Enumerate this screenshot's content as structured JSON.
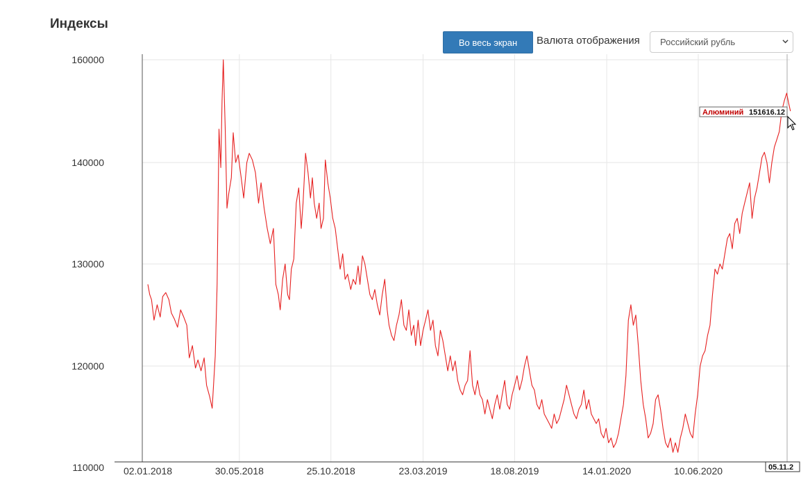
{
  "header": {
    "title": "Индексы",
    "fullscreen_label": "Во весь экран",
    "currency_label": "Валюта отображения",
    "currency_selected": "Российский рубль"
  },
  "colors": {
    "line": "#e62020",
    "button": "#337ab7",
    "grid": "#e6e6e6"
  },
  "chart_data": {
    "type": "line",
    "title": "",
    "xlabel": "",
    "ylabel": "",
    "grid": true,
    "ylim": [
      110000,
      160000
    ],
    "xlim": [
      "2018-01-02",
      "2020-12-09"
    ],
    "y_ticks": [
      110000,
      120000,
      130000,
      140000,
      160000
    ],
    "y_tick_labels": [
      "110000",
      "120000",
      "130000",
      "140000",
      "160000"
    ],
    "x_ticks": [
      "2018-01-02",
      "2018-05-30",
      "2018-10-25",
      "2019-03-23",
      "2019-08-18",
      "2020-01-14",
      "2020-06-10"
    ],
    "x_tick_labels": [
      "02.01.2018",
      "30.05.2018",
      "25.10.2018",
      "23.03.2019",
      "18.08.2019",
      "14.01.2020",
      "10.06.2020"
    ],
    "tooltip": {
      "name": "Алюминий",
      "value": "151616.12",
      "date": "05.11.2"
    },
    "series": [
      {
        "name": "Алюминий",
        "points": [
          [
            "2018-01-02",
            128000
          ],
          [
            "2018-01-05",
            127000
          ],
          [
            "2018-01-08",
            126500
          ],
          [
            "2018-01-12",
            124500
          ],
          [
            "2018-01-17",
            126000
          ],
          [
            "2018-01-22",
            124800
          ],
          [
            "2018-01-26",
            126800
          ],
          [
            "2018-01-31",
            127200
          ],
          [
            "2018-02-05",
            126500
          ],
          [
            "2018-02-09",
            125200
          ],
          [
            "2018-02-14",
            124600
          ],
          [
            "2018-02-19",
            123800
          ],
          [
            "2018-02-24",
            125500
          ],
          [
            "2018-03-01",
            124800
          ],
          [
            "2018-03-06",
            124000
          ],
          [
            "2018-03-10",
            120800
          ],
          [
            "2018-03-15",
            122000
          ],
          [
            "2018-03-20",
            119800
          ],
          [
            "2018-03-24",
            120600
          ],
          [
            "2018-03-29",
            119500
          ],
          [
            "2018-04-03",
            120800
          ],
          [
            "2018-04-07",
            118000
          ],
          [
            "2018-04-12",
            116800
          ],
          [
            "2018-04-16",
            115600
          ],
          [
            "2018-04-21",
            121000
          ],
          [
            "2018-04-24",
            128000
          ],
          [
            "2018-04-27",
            146500
          ],
          [
            "2018-04-30",
            139500
          ],
          [
            "2018-05-02",
            152000
          ],
          [
            "2018-05-04",
            160000
          ],
          [
            "2018-05-07",
            147000
          ],
          [
            "2018-05-10",
            135500
          ],
          [
            "2018-05-13",
            137000
          ],
          [
            "2018-05-17",
            138500
          ],
          [
            "2018-05-20",
            145800
          ],
          [
            "2018-05-24",
            140000
          ],
          [
            "2018-05-28",
            141500
          ],
          [
            "2018-06-02",
            138500
          ],
          [
            "2018-06-06",
            136500
          ],
          [
            "2018-06-11",
            140000
          ],
          [
            "2018-06-15",
            141800
          ],
          [
            "2018-06-20",
            140500
          ],
          [
            "2018-06-25",
            139000
          ],
          [
            "2018-06-30",
            136000
          ],
          [
            "2018-07-04",
            138000
          ],
          [
            "2018-07-09",
            135500
          ],
          [
            "2018-07-14",
            133500
          ],
          [
            "2018-07-19",
            132000
          ],
          [
            "2018-07-24",
            133500
          ],
          [
            "2018-07-28",
            128000
          ],
          [
            "2018-08-01",
            127000
          ],
          [
            "2018-08-04",
            125500
          ],
          [
            "2018-08-08",
            128500
          ],
          [
            "2018-08-12",
            130000
          ],
          [
            "2018-08-16",
            127000
          ],
          [
            "2018-08-19",
            126500
          ],
          [
            "2018-08-22",
            129500
          ],
          [
            "2018-08-26",
            130500
          ],
          [
            "2018-08-30",
            136000
          ],
          [
            "2018-09-03",
            137500
          ],
          [
            "2018-09-07",
            133500
          ],
          [
            "2018-09-10",
            136000
          ],
          [
            "2018-09-14",
            141800
          ],
          [
            "2018-09-18",
            139000
          ],
          [
            "2018-09-22",
            136500
          ],
          [
            "2018-09-25",
            138500
          ],
          [
            "2018-09-28",
            136000
          ],
          [
            "2018-10-02",
            134500
          ],
          [
            "2018-10-06",
            136000
          ],
          [
            "2018-10-09",
            133500
          ],
          [
            "2018-10-13",
            134500
          ],
          [
            "2018-10-16",
            140500
          ],
          [
            "2018-10-20",
            138000
          ],
          [
            "2018-10-24",
            136500
          ],
          [
            "2018-10-28",
            134500
          ],
          [
            "2018-11-01",
            133500
          ],
          [
            "2018-11-05",
            131500
          ],
          [
            "2018-11-09",
            129500
          ],
          [
            "2018-11-13",
            131000
          ],
          [
            "2018-11-17",
            128500
          ],
          [
            "2018-11-21",
            129000
          ],
          [
            "2018-11-26",
            127500
          ],
          [
            "2018-11-30",
            128500
          ],
          [
            "2018-12-04",
            128000
          ],
          [
            "2018-12-08",
            129800
          ],
          [
            "2018-12-11",
            128000
          ],
          [
            "2018-12-15",
            130800
          ],
          [
            "2018-12-19",
            130000
          ],
          [
            "2018-12-23",
            128500
          ],
          [
            "2018-12-27",
            127000
          ],
          [
            "2018-12-31",
            126500
          ],
          [
            "2019-01-04",
            127500
          ],
          [
            "2019-01-08",
            126000
          ],
          [
            "2019-01-12",
            125000
          ],
          [
            "2019-01-16",
            127000
          ],
          [
            "2019-01-20",
            128500
          ],
          [
            "2019-01-24",
            125500
          ],
          [
            "2019-01-27",
            124000
          ],
          [
            "2019-01-31",
            123000
          ],
          [
            "2019-02-04",
            122500
          ],
          [
            "2019-02-08",
            124000
          ],
          [
            "2019-02-12",
            125000
          ],
          [
            "2019-02-16",
            126500
          ],
          [
            "2019-02-20",
            124000
          ],
          [
            "2019-02-24",
            123500
          ],
          [
            "2019-02-28",
            125500
          ],
          [
            "2019-03-04",
            123000
          ],
          [
            "2019-03-08",
            124000
          ],
          [
            "2019-03-11",
            122000
          ],
          [
            "2019-03-15",
            124500
          ],
          [
            "2019-03-19",
            122000
          ],
          [
            "2019-03-23",
            123500
          ],
          [
            "2019-03-27",
            124500
          ],
          [
            "2019-03-31",
            125500
          ],
          [
            "2019-04-04",
            123500
          ],
          [
            "2019-04-08",
            124500
          ],
          [
            "2019-04-12",
            122000
          ],
          [
            "2019-04-16",
            121000
          ],
          [
            "2019-04-20",
            123500
          ],
          [
            "2019-04-24",
            122500
          ],
          [
            "2019-04-28",
            121000
          ],
          [
            "2019-05-02",
            119500
          ],
          [
            "2019-05-06",
            121000
          ],
          [
            "2019-05-10",
            119500
          ],
          [
            "2019-05-14",
            120500
          ],
          [
            "2019-05-18",
            118500
          ],
          [
            "2019-05-22",
            117500
          ],
          [
            "2019-05-26",
            117000
          ],
          [
            "2019-05-30",
            118000
          ],
          [
            "2019-06-03",
            118500
          ],
          [
            "2019-06-07",
            121500
          ],
          [
            "2019-06-11",
            118000
          ],
          [
            "2019-06-15",
            117000
          ],
          [
            "2019-06-19",
            118500
          ],
          [
            "2019-06-23",
            117000
          ],
          [
            "2019-06-27",
            116500
          ],
          [
            "2019-07-01",
            115000
          ],
          [
            "2019-07-05",
            116500
          ],
          [
            "2019-07-09",
            115500
          ],
          [
            "2019-07-13",
            114500
          ],
          [
            "2019-07-17",
            116000
          ],
          [
            "2019-07-21",
            117000
          ],
          [
            "2019-07-25",
            115500
          ],
          [
            "2019-07-29",
            117000
          ],
          [
            "2019-08-02",
            118500
          ],
          [
            "2019-08-06",
            116000
          ],
          [
            "2019-08-10",
            115500
          ],
          [
            "2019-08-14",
            117000
          ],
          [
            "2019-08-18",
            118000
          ],
          [
            "2019-08-22",
            119000
          ],
          [
            "2019-08-26",
            117500
          ],
          [
            "2019-08-30",
            118500
          ],
          [
            "2019-09-03",
            120000
          ],
          [
            "2019-09-07",
            121000
          ],
          [
            "2019-09-11",
            119500
          ],
          [
            "2019-09-15",
            118000
          ],
          [
            "2019-09-19",
            117500
          ],
          [
            "2019-09-23",
            116000
          ],
          [
            "2019-09-27",
            115500
          ],
          [
            "2019-10-01",
            116500
          ],
          [
            "2019-10-05",
            115000
          ],
          [
            "2019-10-09",
            114500
          ],
          [
            "2019-10-13",
            114000
          ],
          [
            "2019-10-17",
            113500
          ],
          [
            "2019-10-21",
            115000
          ],
          [
            "2019-10-25",
            114000
          ],
          [
            "2019-10-29",
            114500
          ],
          [
            "2019-11-02",
            115500
          ],
          [
            "2019-11-06",
            116500
          ],
          [
            "2019-11-10",
            118000
          ],
          [
            "2019-11-14",
            117000
          ],
          [
            "2019-11-18",
            116000
          ],
          [
            "2019-11-22",
            115000
          ],
          [
            "2019-11-26",
            114500
          ],
          [
            "2019-11-30",
            115500
          ],
          [
            "2019-12-04",
            116000
          ],
          [
            "2019-12-08",
            117500
          ],
          [
            "2019-12-12",
            115500
          ],
          [
            "2019-12-16",
            116500
          ],
          [
            "2019-12-20",
            115000
          ],
          [
            "2019-12-24",
            114500
          ],
          [
            "2019-12-28",
            114000
          ],
          [
            "2020-01-01",
            114500
          ],
          [
            "2020-01-05",
            113000
          ],
          [
            "2020-01-09",
            112500
          ],
          [
            "2020-01-13",
            113500
          ],
          [
            "2020-01-17",
            112000
          ],
          [
            "2020-01-21",
            112500
          ],
          [
            "2020-01-25",
            111500
          ],
          [
            "2020-01-29",
            112000
          ],
          [
            "2020-02-02",
            113000
          ],
          [
            "2020-02-06",
            114500
          ],
          [
            "2020-02-10",
            116000
          ],
          [
            "2020-02-14",
            119000
          ],
          [
            "2020-02-18",
            124500
          ],
          [
            "2020-02-22",
            126000
          ],
          [
            "2020-02-26",
            124000
          ],
          [
            "2020-03-01",
            125000
          ],
          [
            "2020-03-05",
            122000
          ],
          [
            "2020-03-09",
            118500
          ],
          [
            "2020-03-13",
            116000
          ],
          [
            "2020-03-17",
            114500
          ],
          [
            "2020-03-21",
            112500
          ],
          [
            "2020-03-25",
            113000
          ],
          [
            "2020-03-29",
            114000
          ],
          [
            "2020-04-02",
            116500
          ],
          [
            "2020-04-06",
            117000
          ],
          [
            "2020-04-10",
            115500
          ],
          [
            "2020-04-14",
            113500
          ],
          [
            "2020-04-18",
            112000
          ],
          [
            "2020-04-22",
            111500
          ],
          [
            "2020-04-26",
            112500
          ],
          [
            "2020-04-30",
            111000
          ],
          [
            "2020-05-04",
            112000
          ],
          [
            "2020-05-08",
            111000
          ],
          [
            "2020-05-12",
            112500
          ],
          [
            "2020-05-16",
            113500
          ],
          [
            "2020-05-20",
            115000
          ],
          [
            "2020-05-24",
            114000
          ],
          [
            "2020-05-28",
            113000
          ],
          [
            "2020-06-01",
            112500
          ],
          [
            "2020-06-05",
            115000
          ],
          [
            "2020-06-09",
            117000
          ],
          [
            "2020-06-13",
            120000
          ],
          [
            "2020-06-17",
            121000
          ],
          [
            "2020-06-21",
            121500
          ],
          [
            "2020-06-25",
            123000
          ],
          [
            "2020-06-29",
            124000
          ],
          [
            "2020-07-03",
            127000
          ],
          [
            "2020-07-07",
            129500
          ],
          [
            "2020-07-11",
            129000
          ],
          [
            "2020-07-15",
            130000
          ],
          [
            "2020-07-19",
            129500
          ],
          [
            "2020-07-23",
            131000
          ],
          [
            "2020-07-27",
            132500
          ],
          [
            "2020-07-31",
            133000
          ],
          [
            "2020-08-04",
            131500
          ],
          [
            "2020-08-08",
            134000
          ],
          [
            "2020-08-12",
            134500
          ],
          [
            "2020-08-16",
            133000
          ],
          [
            "2020-08-20",
            135000
          ],
          [
            "2020-08-24",
            136000
          ],
          [
            "2020-08-28",
            137000
          ],
          [
            "2020-09-01",
            138000
          ],
          [
            "2020-09-05",
            134500
          ],
          [
            "2020-09-09",
            136500
          ],
          [
            "2020-09-13",
            137500
          ],
          [
            "2020-09-17",
            139000
          ],
          [
            "2020-09-21",
            141000
          ],
          [
            "2020-09-25",
            142000
          ],
          [
            "2020-09-29",
            140000
          ],
          [
            "2020-10-03",
            138000
          ],
          [
            "2020-10-07",
            140000
          ],
          [
            "2020-10-11",
            143000
          ],
          [
            "2020-10-15",
            144500
          ],
          [
            "2020-10-19",
            146000
          ],
          [
            "2020-10-23",
            150000
          ],
          [
            "2020-10-27",
            152000
          ],
          [
            "2020-10-31",
            153500
          ],
          [
            "2020-11-03",
            151616.12
          ],
          [
            "2020-11-06",
            150000
          ]
        ]
      }
    ]
  }
}
